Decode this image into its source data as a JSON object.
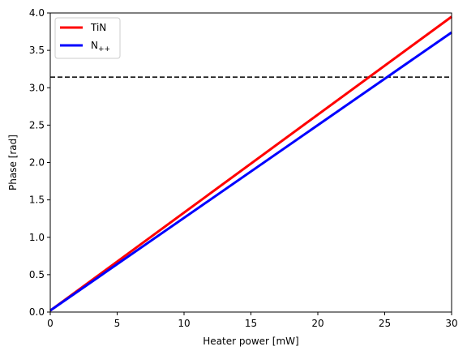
{
  "chart_data": {
    "type": "line",
    "xlabel": "Heater power [mW]",
    "ylabel": "Phase [rad]",
    "xlim": [
      0,
      30
    ],
    "ylim": [
      0,
      4.0
    ],
    "xticks": [
      0,
      5,
      10,
      15,
      20,
      25,
      30
    ],
    "xtick_labels": [
      "0",
      "5",
      "10",
      "15",
      "20",
      "25",
      "30"
    ],
    "yticks": [
      0,
      0.5,
      1.0,
      1.5,
      2.0,
      2.5,
      3.0,
      3.5,
      4.0
    ],
    "ytick_labels": [
      "0.0",
      "0.5",
      "1.0",
      "1.5",
      "2.0",
      "2.5",
      "3.0",
      "3.5",
      "4.0"
    ],
    "grid": false,
    "legend_position": "top-left",
    "series": [
      {
        "name": "TiN",
        "color": "#ff0000",
        "x": [
          0,
          30
        ],
        "y": [
          0.02,
          3.95
        ]
      },
      {
        "name": "N",
        "name_subscript": "++",
        "color": "#0000ff",
        "x": [
          0,
          30
        ],
        "y": [
          0.02,
          3.74
        ]
      }
    ],
    "reference_line": {
      "y": 3.1416,
      "color": "#000000",
      "style": "dashed"
    }
  }
}
